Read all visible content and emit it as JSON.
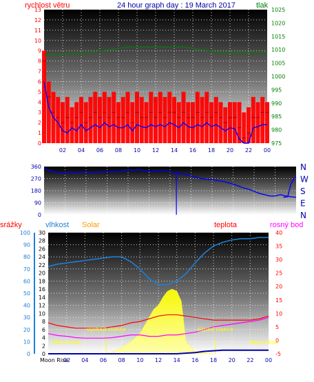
{
  "title": "24 hour graph day : 19 March 2017",
  "colors": {
    "red": "#ff0000",
    "green": "#008000",
    "blue": "#0000ff",
    "humidity": "#1e7fd6",
    "solar": "#ffff33",
    "solar_label": "#ff9900",
    "dewpoint": "#ff00ff",
    "rain": "#0000aa",
    "sun_labels": "#ffff00"
  },
  "chart_data": [
    {
      "id": "wind-pressure",
      "type": "line",
      "x_labels": [
        "02",
        "04",
        "06",
        "08",
        "10",
        "12",
        "14",
        "16",
        "18",
        "20",
        "22",
        "00"
      ],
      "y_left_label": "rychlost větru",
      "y_left_ticks": [
        "0",
        "1",
        "2",
        "3",
        "4",
        "5",
        "6",
        "7",
        "8",
        "9",
        "10",
        "11",
        "12",
        "13"
      ],
      "y_left_range": [
        0,
        13
      ],
      "y_right_label": "tlak",
      "y_right_ticks": [
        "975",
        "980",
        "985",
        "990",
        "995",
        "1000",
        "1005",
        "1010",
        "1015",
        "1020",
        "1025"
      ],
      "y_right_range": [
        975,
        1025
      ],
      "grid": true,
      "series": [
        {
          "color": "red",
          "axis": "left",
          "style": "bars",
          "x": [
            0,
            0.5,
            1,
            1.5,
            2,
            2.5,
            3,
            3.5,
            4,
            4.5,
            5,
            5.5,
            6,
            6.5,
            7,
            7.5,
            8,
            8.5,
            9,
            9.5,
            10,
            10.5,
            11,
            11.5,
            12,
            12.5,
            13,
            13.5,
            14,
            14.5,
            15,
            15.5,
            16,
            16.5,
            17,
            17.5,
            18,
            18.5,
            19,
            19.5,
            20,
            20.5,
            21,
            21.5,
            22,
            22.5,
            23,
            23.5,
            24
          ],
          "values": [
            8,
            4.5,
            3,
            2.5,
            2,
            2.5,
            2,
            2.5,
            3,
            2,
            2.5,
            3,
            2.5,
            3,
            2.5,
            3,
            2.5,
            2.5,
            3,
            2,
            3,
            2.5,
            2.5,
            3,
            2.5,
            3,
            2.5,
            3,
            3,
            2.5,
            3,
            2.5,
            2.5,
            3,
            2.5,
            3,
            2.5,
            3,
            2.5,
            2,
            2.5,
            2.5,
            1.5,
            0.5,
            1,
            2.5,
            2.5,
            3,
            3
          ],
          "max": [
            9,
            6,
            5,
            4.5,
            4,
            4.5,
            3.5,
            4,
            4.5,
            4,
            4.5,
            5,
            4.5,
            5,
            4.5,
            5,
            4,
            4.5,
            5,
            4,
            5,
            4.5,
            4,
            5,
            4.5,
            5,
            4.5,
            5,
            4.5,
            4,
            5,
            4,
            4,
            5,
            4.5,
            5,
            4,
            4.5,
            4,
            3.5,
            4,
            4,
            4,
            3,
            3.5,
            4.5,
            4,
            4.5,
            4
          ]
        },
        {
          "color": "blue",
          "axis": "left",
          "style": "line",
          "x": [
            0,
            0.5,
            1,
            1.5,
            2,
            2.5,
            3,
            3.5,
            4,
            4.5,
            5,
            5.5,
            6,
            6.5,
            7,
            7.5,
            8,
            8.5,
            9,
            9.5,
            10,
            10.5,
            11,
            11.5,
            12,
            12.5,
            13,
            13.5,
            14,
            14.5,
            15,
            15.5,
            16,
            16.5,
            17,
            17.5,
            18,
            18.5,
            19,
            19.5,
            20,
            20.5,
            21,
            21.5,
            22,
            22.5,
            23,
            23.5,
            24
          ],
          "values": [
            6,
            3.5,
            2.5,
            2,
            1.2,
            1,
            1.5,
            1.2,
            1.8,
            1.2,
            1.5,
            1.8,
            1.5,
            2,
            1.6,
            1.8,
            1.5,
            1.5,
            1.8,
            1.2,
            1.8,
            1.6,
            1.5,
            1.8,
            1.6,
            1.8,
            1.6,
            2,
            1.8,
            1.5,
            2,
            1.6,
            1.5,
            1.8,
            1.6,
            2,
            1.6,
            1.8,
            1.5,
            1.2,
            1.5,
            1.4,
            0.4,
            0,
            0,
            1.5,
            1.6,
            1.8,
            1.8
          ]
        },
        {
          "color": "green",
          "axis": "right",
          "style": "line",
          "x": [
            0,
            1,
            2,
            3,
            4,
            5,
            6,
            7,
            8,
            9,
            10,
            11,
            12,
            13,
            14,
            15,
            16,
            17,
            18,
            19,
            20,
            21,
            22,
            23,
            24
          ],
          "values": [
            1008,
            1008,
            1008.5,
            1008.5,
            1008.5,
            1009,
            1009.5,
            1010,
            1010.5,
            1011,
            1011,
            1011,
            1011,
            1011,
            1011,
            1011,
            1010.5,
            1010,
            1009.5,
            1009,
            1009,
            1009,
            1009,
            1009,
            1009
          ]
        }
      ]
    },
    {
      "id": "wind-direction",
      "type": "line",
      "y_left_ticks": [
        "0",
        "90",
        "180",
        "270",
        "360"
      ],
      "y_left_range": [
        0,
        360
      ],
      "y_right_labels": [
        "N",
        "W",
        "S",
        "E",
        "N"
      ],
      "grid": true,
      "series": [
        {
          "color": "blue",
          "axis": "left",
          "x": [
            0,
            0.5,
            1,
            1.5,
            2,
            2.5,
            3,
            3.5,
            4,
            4.5,
            5,
            5.5,
            6,
            6.5,
            7,
            7.5,
            8,
            8.5,
            9,
            9.5,
            10,
            10.5,
            11,
            11.5,
            12,
            12.5,
            13,
            13.5,
            14,
            14.5,
            15,
            15.5,
            16,
            16.5,
            17,
            17.5,
            18,
            18.5,
            19,
            19.5,
            20,
            20.5,
            21,
            21.5,
            22,
            22.5,
            23,
            23.5,
            24
          ],
          "values": [
            345,
            330,
            320,
            310,
            315,
            320,
            312,
            318,
            322,
            315,
            318,
            320,
            320,
            325,
            322,
            330,
            335,
            330,
            338,
            330,
            325,
            328,
            330,
            332,
            320,
            315,
            305,
            300,
            290,
            280,
            270,
            265,
            262,
            255,
            250,
            240,
            230,
            215,
            200,
            190,
            175,
            160,
            150,
            140,
            140,
            150,
            140,
            135,
            130
          ]
        },
        {
          "color": "blue",
          "axis": "left",
          "x": [
            22.8,
            23.2,
            23.5,
            23.8,
            24
          ],
          "values": [
            130,
            135,
            230,
            270,
            280
          ]
        }
      ],
      "spikes": [
        {
          "x": 12.6,
          "from": 320,
          "to": 0
        }
      ]
    },
    {
      "id": "temp-humidity-solar",
      "type": "line",
      "x_labels": [
        "02",
        "04",
        "06",
        "08",
        "10",
        "12",
        "14",
        "16",
        "18",
        "20",
        "22",
        "00"
      ],
      "left1_label": "srážky",
      "left1_ticks": [
        "0",
        "10",
        "20",
        "30",
        "40",
        "50",
        "60",
        "70",
        "80",
        "90",
        "100"
      ],
      "left1_range": [
        0,
        100
      ],
      "left2_label": "vlhkost",
      "left2_ticks": [
        "0",
        "2",
        "4",
        "6",
        "8",
        "10",
        "12",
        "14",
        "16",
        "18",
        "20",
        "22",
        "24",
        "26",
        "28",
        "30"
      ],
      "left2_range": [
        0,
        30
      ],
      "solar_label": "Solar",
      "temp_label": "teplota",
      "dew_label": "rosný bod",
      "right_ticks": [
        "-5",
        "0",
        "5",
        "10",
        "15",
        "20",
        "25",
        "30",
        "35",
        "40"
      ],
      "right_range": [
        -5,
        40
      ],
      "grid": true,
      "annotations": [
        {
          "text": "Moon Rise",
          "x": 2
        },
        {
          "text": "východ slunce",
          "x": 6.3
        },
        {
          "text": "západ slunce",
          "x": 18.2
        },
        {
          "text": "Moon Rise",
          "x": 23.5
        }
      ],
      "bottom_text": "Moon Rise",
      "bottom_tick_first": "02",
      "sun_marks": [
        6.3,
        18.2
      ],
      "series": [
        {
          "color": "humidity",
          "axis": "left1",
          "x": [
            0,
            1,
            2,
            3,
            4,
            5,
            6,
            7,
            8,
            9,
            10,
            11,
            12,
            13,
            14,
            15,
            16,
            17,
            18,
            19,
            20,
            21,
            22,
            23,
            24
          ],
          "values": [
            72,
            74,
            75,
            76,
            77,
            78,
            79,
            80,
            80,
            76,
            70,
            62,
            57,
            57,
            60,
            66,
            75,
            83,
            89,
            92,
            94,
            95,
            95,
            96,
            96
          ]
        },
        {
          "color": "solar",
          "axis": "left2",
          "style": "area",
          "x": [
            6,
            7,
            8,
            9,
            9.5,
            10,
            10.5,
            11,
            11.5,
            12,
            12.5,
            13,
            13.5,
            14,
            14.5,
            15,
            16,
            17,
            18
          ],
          "values": [
            0,
            0.5,
            1.5,
            3,
            4,
            5,
            7,
            9,
            11,
            12,
            14,
            15.5,
            16,
            15.5,
            13,
            3,
            0.5,
            0.2,
            0
          ]
        },
        {
          "color": "red",
          "axis": "right",
          "x": [
            0,
            1,
            2,
            3,
            4,
            5,
            6,
            7,
            8,
            9,
            10,
            11,
            12,
            13,
            14,
            15,
            16,
            17,
            18,
            19,
            20,
            21,
            22,
            23,
            24
          ],
          "values": [
            6.5,
            5.5,
            5,
            4.5,
            4.5,
            4.5,
            4.5,
            5,
            5.5,
            6.5,
            7,
            8,
            9,
            9.5,
            9.5,
            9,
            8.5,
            8,
            7.5,
            7.5,
            7.5,
            7.5,
            7.5,
            8,
            9
          ]
        },
        {
          "color": "dewpoint",
          "axis": "right",
          "x": [
            0,
            1,
            2,
            3,
            4,
            5,
            6,
            7,
            8,
            9,
            10,
            11,
            12,
            13,
            14,
            15,
            16,
            17,
            18,
            19,
            20,
            21,
            22,
            23,
            24
          ],
          "values": [
            2.5,
            1.8,
            1.5,
            1,
            0.8,
            0.8,
            0.8,
            1,
            1.5,
            2,
            2,
            1.5,
            1.5,
            2,
            2,
            2.5,
            3,
            4,
            5,
            5.5,
            6,
            6.5,
            7,
            7.5,
            8.5
          ]
        },
        {
          "color": "rain",
          "axis": "left1",
          "x": [
            0,
            14,
            15,
            16,
            17,
            18,
            19,
            20,
            21,
            22,
            23,
            24
          ],
          "values": [
            0,
            0,
            0.5,
            1,
            2,
            2.5,
            3,
            3,
            3,
            3,
            3,
            3
          ]
        }
      ]
    }
  ]
}
